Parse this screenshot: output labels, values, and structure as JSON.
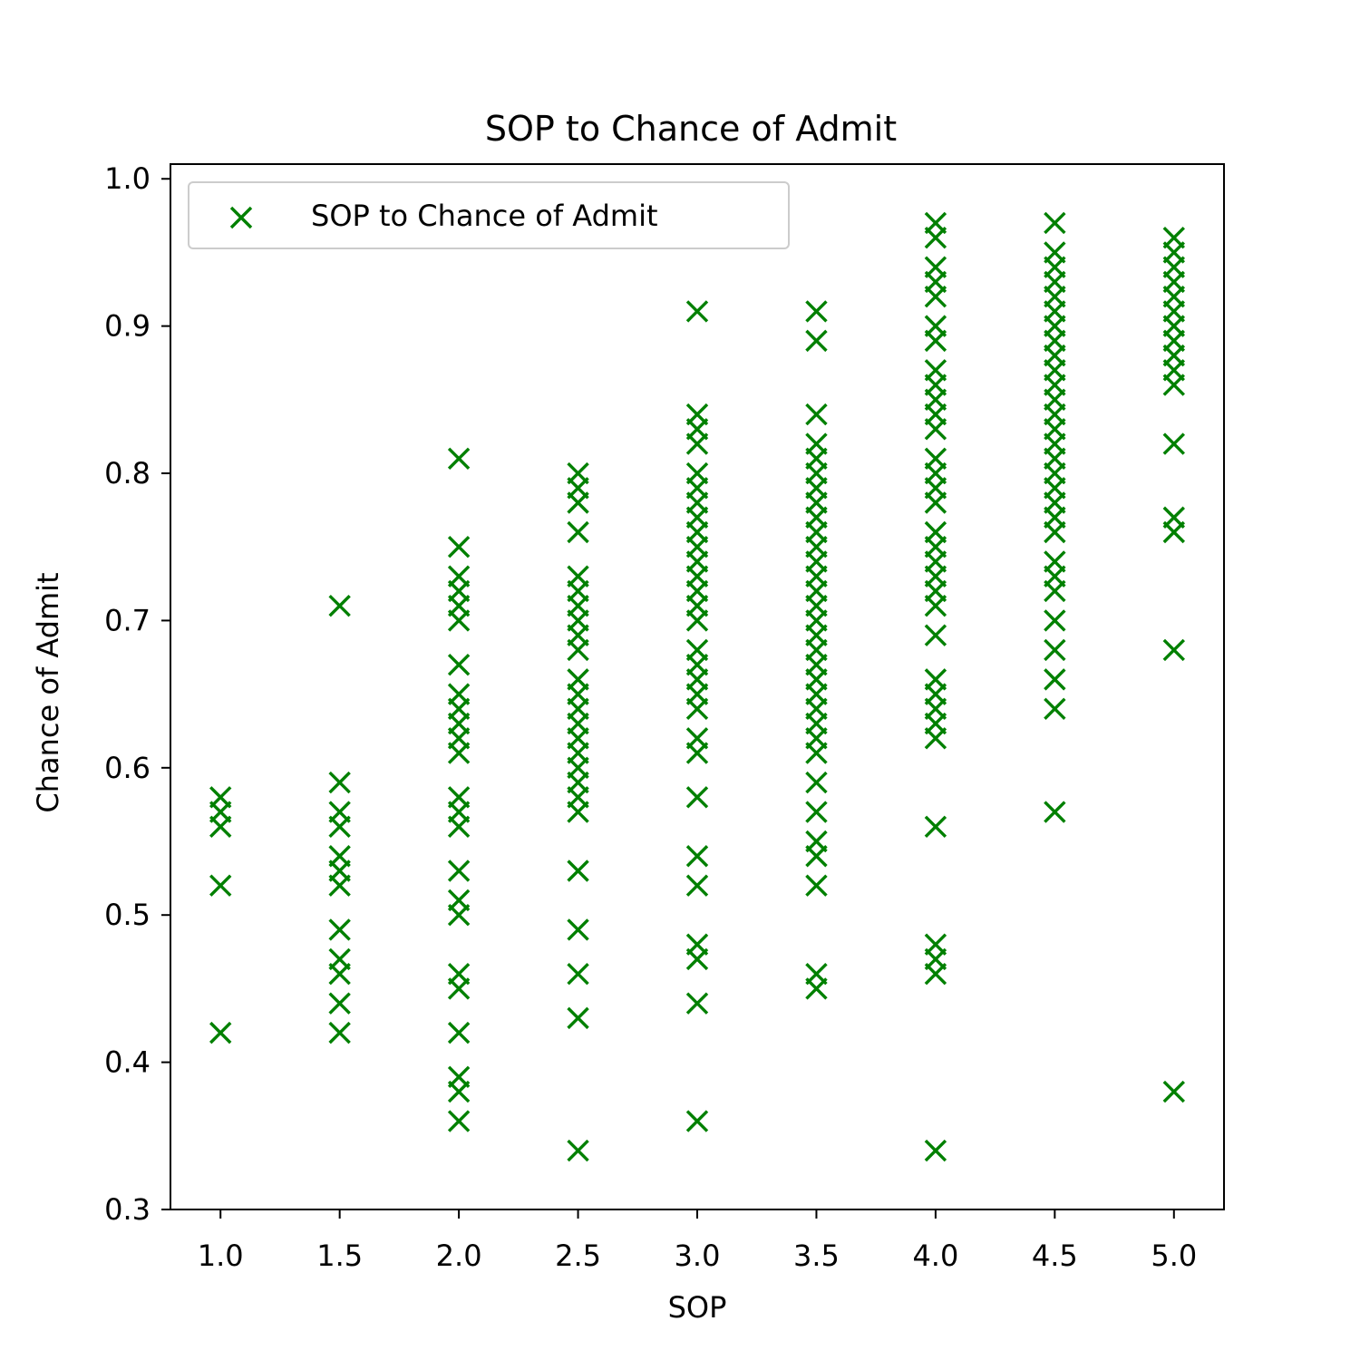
{
  "chart_data": {
    "type": "scatter",
    "title": "SOP to Chance of Admit",
    "xlabel": "SOP",
    "ylabel": "Chance of Admit",
    "xlim": [
      0.79,
      5.21
    ],
    "ylim": [
      0.3,
      1.01
    ],
    "x_ticks": [
      "1.0",
      "1.5",
      "2.0",
      "2.5",
      "3.0",
      "3.5",
      "4.0",
      "4.5",
      "5.0"
    ],
    "y_ticks": [
      "0.3",
      "0.4",
      "0.5",
      "0.6",
      "0.7",
      "0.8",
      "0.9",
      "1.0"
    ],
    "grid": false,
    "legend": {
      "placement": "upper-left"
    },
    "series": [
      {
        "name": "SOP to Chance of Admit",
        "marker": "x",
        "color": "#008000",
        "points": [
          [
            1.0,
            0.58
          ],
          [
            1.0,
            0.57
          ],
          [
            1.0,
            0.56
          ],
          [
            1.0,
            0.52
          ],
          [
            1.0,
            0.42
          ],
          [
            1.5,
            0.71
          ],
          [
            1.5,
            0.59
          ],
          [
            1.5,
            0.57
          ],
          [
            1.5,
            0.56
          ],
          [
            1.5,
            0.54
          ],
          [
            1.5,
            0.53
          ],
          [
            1.5,
            0.52
          ],
          [
            1.5,
            0.49
          ],
          [
            1.5,
            0.47
          ],
          [
            1.5,
            0.46
          ],
          [
            1.5,
            0.44
          ],
          [
            1.5,
            0.42
          ],
          [
            2.0,
            0.81
          ],
          [
            2.0,
            0.75
          ],
          [
            2.0,
            0.73
          ],
          [
            2.0,
            0.72
          ],
          [
            2.0,
            0.71
          ],
          [
            2.0,
            0.7
          ],
          [
            2.0,
            0.67
          ],
          [
            2.0,
            0.65
          ],
          [
            2.0,
            0.64
          ],
          [
            2.0,
            0.63
          ],
          [
            2.0,
            0.62
          ],
          [
            2.0,
            0.61
          ],
          [
            2.0,
            0.58
          ],
          [
            2.0,
            0.57
          ],
          [
            2.0,
            0.56
          ],
          [
            2.0,
            0.53
          ],
          [
            2.0,
            0.51
          ],
          [
            2.0,
            0.5
          ],
          [
            2.0,
            0.46
          ],
          [
            2.0,
            0.45
          ],
          [
            2.0,
            0.42
          ],
          [
            2.0,
            0.39
          ],
          [
            2.0,
            0.38
          ],
          [
            2.0,
            0.36
          ],
          [
            2.5,
            0.8
          ],
          [
            2.5,
            0.79
          ],
          [
            2.5,
            0.78
          ],
          [
            2.5,
            0.76
          ],
          [
            2.5,
            0.73
          ],
          [
            2.5,
            0.72
          ],
          [
            2.5,
            0.71
          ],
          [
            2.5,
            0.7
          ],
          [
            2.5,
            0.69
          ],
          [
            2.5,
            0.68
          ],
          [
            2.5,
            0.66
          ],
          [
            2.5,
            0.65
          ],
          [
            2.5,
            0.64
          ],
          [
            2.5,
            0.63
          ],
          [
            2.5,
            0.62
          ],
          [
            2.5,
            0.61
          ],
          [
            2.5,
            0.6
          ],
          [
            2.5,
            0.59
          ],
          [
            2.5,
            0.58
          ],
          [
            2.5,
            0.57
          ],
          [
            2.5,
            0.53
          ],
          [
            2.5,
            0.49
          ],
          [
            2.5,
            0.46
          ],
          [
            2.5,
            0.43
          ],
          [
            2.5,
            0.34
          ],
          [
            3.0,
            0.91
          ],
          [
            3.0,
            0.84
          ],
          [
            3.0,
            0.83
          ],
          [
            3.0,
            0.82
          ],
          [
            3.0,
            0.8
          ],
          [
            3.0,
            0.79
          ],
          [
            3.0,
            0.78
          ],
          [
            3.0,
            0.77
          ],
          [
            3.0,
            0.76
          ],
          [
            3.0,
            0.75
          ],
          [
            3.0,
            0.74
          ],
          [
            3.0,
            0.73
          ],
          [
            3.0,
            0.72
          ],
          [
            3.0,
            0.71
          ],
          [
            3.0,
            0.7
          ],
          [
            3.0,
            0.68
          ],
          [
            3.0,
            0.67
          ],
          [
            3.0,
            0.66
          ],
          [
            3.0,
            0.65
          ],
          [
            3.0,
            0.64
          ],
          [
            3.0,
            0.62
          ],
          [
            3.0,
            0.61
          ],
          [
            3.0,
            0.58
          ],
          [
            3.0,
            0.54
          ],
          [
            3.0,
            0.52
          ],
          [
            3.0,
            0.48
          ],
          [
            3.0,
            0.47
          ],
          [
            3.0,
            0.44
          ],
          [
            3.0,
            0.36
          ],
          [
            3.5,
            0.91
          ],
          [
            3.5,
            0.89
          ],
          [
            3.5,
            0.84
          ],
          [
            3.5,
            0.82
          ],
          [
            3.5,
            0.81
          ],
          [
            3.5,
            0.8
          ],
          [
            3.5,
            0.79
          ],
          [
            3.5,
            0.78
          ],
          [
            3.5,
            0.77
          ],
          [
            3.5,
            0.76
          ],
          [
            3.5,
            0.75
          ],
          [
            3.5,
            0.74
          ],
          [
            3.5,
            0.73
          ],
          [
            3.5,
            0.72
          ],
          [
            3.5,
            0.71
          ],
          [
            3.5,
            0.7
          ],
          [
            3.5,
            0.69
          ],
          [
            3.5,
            0.68
          ],
          [
            3.5,
            0.67
          ],
          [
            3.5,
            0.66
          ],
          [
            3.5,
            0.65
          ],
          [
            3.5,
            0.64
          ],
          [
            3.5,
            0.63
          ],
          [
            3.5,
            0.62
          ],
          [
            3.5,
            0.61
          ],
          [
            3.5,
            0.59
          ],
          [
            3.5,
            0.57
          ],
          [
            3.5,
            0.55
          ],
          [
            3.5,
            0.54
          ],
          [
            3.5,
            0.52
          ],
          [
            3.5,
            0.46
          ],
          [
            3.5,
            0.45
          ],
          [
            4.0,
            0.97
          ],
          [
            4.0,
            0.96
          ],
          [
            4.0,
            0.94
          ],
          [
            4.0,
            0.93
          ],
          [
            4.0,
            0.92
          ],
          [
            4.0,
            0.9
          ],
          [
            4.0,
            0.89
          ],
          [
            4.0,
            0.87
          ],
          [
            4.0,
            0.86
          ],
          [
            4.0,
            0.85
          ],
          [
            4.0,
            0.84
          ],
          [
            4.0,
            0.83
          ],
          [
            4.0,
            0.81
          ],
          [
            4.0,
            0.8
          ],
          [
            4.0,
            0.79
          ],
          [
            4.0,
            0.78
          ],
          [
            4.0,
            0.76
          ],
          [
            4.0,
            0.75
          ],
          [
            4.0,
            0.74
          ],
          [
            4.0,
            0.73
          ],
          [
            4.0,
            0.72
          ],
          [
            4.0,
            0.71
          ],
          [
            4.0,
            0.69
          ],
          [
            4.0,
            0.66
          ],
          [
            4.0,
            0.65
          ],
          [
            4.0,
            0.64
          ],
          [
            4.0,
            0.63
          ],
          [
            4.0,
            0.62
          ],
          [
            4.0,
            0.56
          ],
          [
            4.0,
            0.48
          ],
          [
            4.0,
            0.47
          ],
          [
            4.0,
            0.46
          ],
          [
            4.0,
            0.34
          ],
          [
            4.5,
            0.97
          ],
          [
            4.5,
            0.95
          ],
          [
            4.5,
            0.94
          ],
          [
            4.5,
            0.93
          ],
          [
            4.5,
            0.92
          ],
          [
            4.5,
            0.91
          ],
          [
            4.5,
            0.9
          ],
          [
            4.5,
            0.89
          ],
          [
            4.5,
            0.88
          ],
          [
            4.5,
            0.87
          ],
          [
            4.5,
            0.86
          ],
          [
            4.5,
            0.85
          ],
          [
            4.5,
            0.84
          ],
          [
            4.5,
            0.83
          ],
          [
            4.5,
            0.82
          ],
          [
            4.5,
            0.81
          ],
          [
            4.5,
            0.8
          ],
          [
            4.5,
            0.79
          ],
          [
            4.5,
            0.78
          ],
          [
            4.5,
            0.77
          ],
          [
            4.5,
            0.76
          ],
          [
            4.5,
            0.74
          ],
          [
            4.5,
            0.73
          ],
          [
            4.5,
            0.72
          ],
          [
            4.5,
            0.7
          ],
          [
            4.5,
            0.68
          ],
          [
            4.5,
            0.66
          ],
          [
            4.5,
            0.64
          ],
          [
            4.5,
            0.57
          ],
          [
            5.0,
            0.96
          ],
          [
            5.0,
            0.95
          ],
          [
            5.0,
            0.94
          ],
          [
            5.0,
            0.93
          ],
          [
            5.0,
            0.92
          ],
          [
            5.0,
            0.91
          ],
          [
            5.0,
            0.9
          ],
          [
            5.0,
            0.89
          ],
          [
            5.0,
            0.88
          ],
          [
            5.0,
            0.87
          ],
          [
            5.0,
            0.86
          ],
          [
            5.0,
            0.82
          ],
          [
            5.0,
            0.77
          ],
          [
            5.0,
            0.76
          ],
          [
            5.0,
            0.68
          ],
          [
            5.0,
            0.38
          ]
        ]
      }
    ]
  }
}
